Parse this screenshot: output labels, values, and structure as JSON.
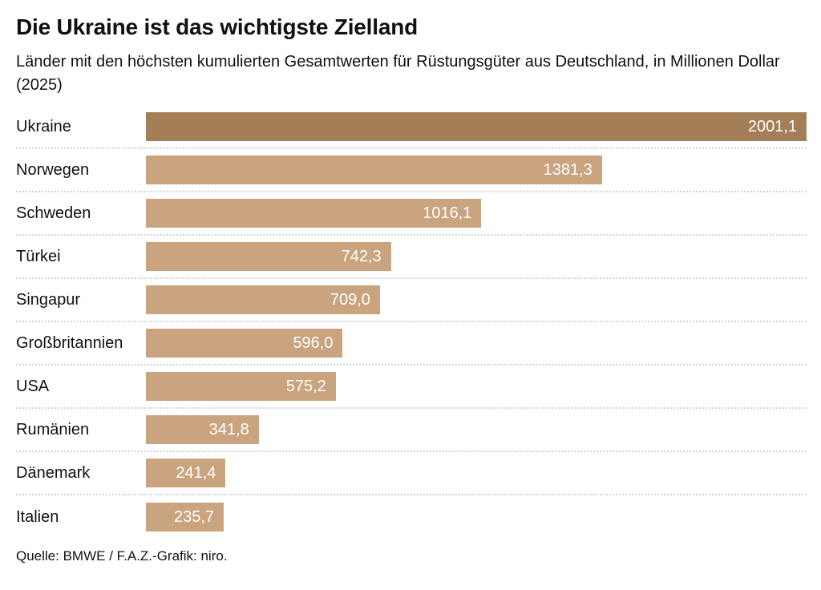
{
  "header": {
    "title": "Die Ukraine ist das wichtigste Zielland",
    "subtitle": "Länder mit den höchsten kumulierten Gesamtwerten für Rüstungsgüter aus Deutschland, in Millionen Dollar (2025)"
  },
  "footer": {
    "source": "Quelle: BMWE / F.A.Z.-Grafik: niro."
  },
  "colors": {
    "bar_highlight": "#a47e56",
    "bar_regular": "#c9a47e",
    "separator": "#d4d4d4",
    "text": "#111111",
    "value_text": "#ffffff"
  },
  "chart_data": {
    "type": "bar",
    "orientation": "horizontal",
    "title": "Die Ukraine ist das wichtigste Zielland",
    "subtitle": "Länder mit den höchsten kumulierten Gesamtwerten für Rüstungsgüter aus Deutschland, in Millionen Dollar (2025)",
    "unit": "Millionen Dollar",
    "year": "2025",
    "categories": [
      "Ukraine",
      "Norwegen",
      "Schweden",
      "Türkei",
      "Singapur",
      "Großbritannien",
      "USA",
      "Rumänien",
      "Dänemark",
      "Italien"
    ],
    "values": [
      2001.1,
      1381.3,
      1016.1,
      742.3,
      709.0,
      596.0,
      575.2,
      341.8,
      241.4,
      235.7
    ],
    "value_labels": [
      "2001,1",
      "1381,3",
      "1016,1",
      "742,3",
      "709,0",
      "596,0",
      "575,2",
      "341,8",
      "241,4",
      "235,7"
    ],
    "highlighted_index": 0,
    "xlim": [
      0,
      2001.1
    ],
    "grid": false,
    "legend": false,
    "value_label_position": "inside-end",
    "source": "Quelle: BMWE / F.A.Z.-Grafik: niro."
  }
}
